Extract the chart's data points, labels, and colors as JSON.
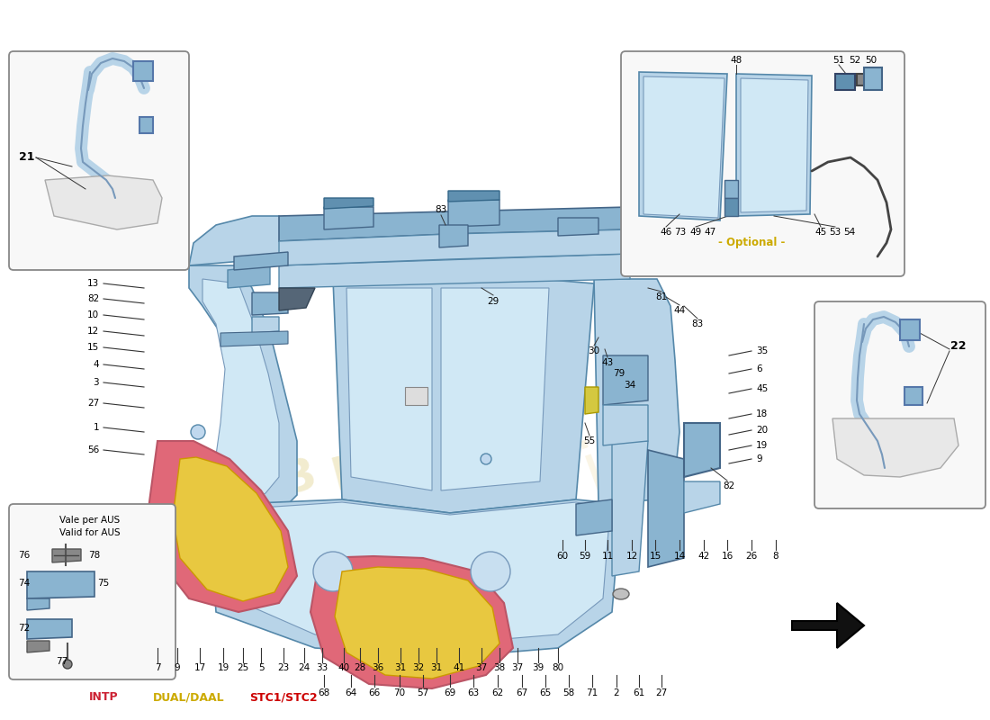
{
  "bg_color": "#ffffff",
  "light_blue": "#b8d4e8",
  "mid_blue": "#8ab4d0",
  "dark_blue": "#6090b0",
  "very_light_blue": "#d0e8f5",
  "seat_pink": "#e06878",
  "seat_yellow": "#e8c840",
  "line_color": "#444444",
  "label_color": "#000000",
  "intp_color": "#cc2233",
  "dual_color": "#ccaa00",
  "stc_color": "#cc0000",
  "optional_color": "#ccaa00",
  "watermark_color": "#d4c060",
  "legend_intp": "INTP",
  "legend_dual": "DUAL/DAAL",
  "legend_stc": "STC1/STC2",
  "top_nums": [
    "7",
    "9",
    "17",
    "19",
    "25",
    "5",
    "23",
    "24",
    "33",
    "40",
    "28",
    "36",
    "31",
    "32",
    "31",
    "41",
    "37",
    "38",
    "37",
    "39",
    "80"
  ],
  "bot_nums": [
    "68",
    "64",
    "66",
    "70",
    "57",
    "69",
    "63",
    "62",
    "67",
    "65",
    "58",
    "71",
    "2",
    "61",
    "27"
  ],
  "lower_r_nums": [
    "60",
    "59",
    "11",
    "12",
    "15",
    "14",
    "42",
    "16",
    "26",
    "8"
  ],
  "left_nums": [
    "13",
    "82",
    "10",
    "12",
    "15",
    "4",
    "3",
    "27",
    "1",
    "56"
  ]
}
